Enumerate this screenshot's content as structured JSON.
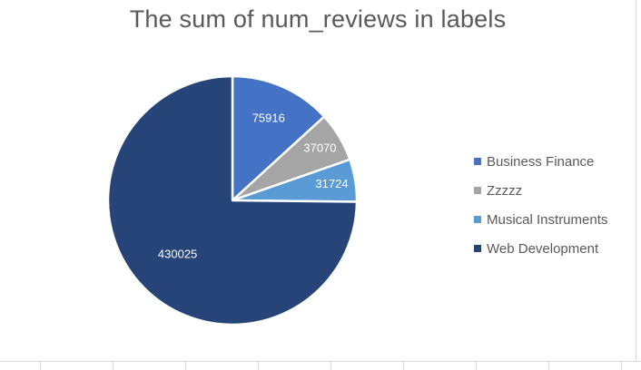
{
  "chart_data": {
    "type": "pie",
    "title": "The sum of num_reviews in labels",
    "categories": [
      "Business Finance",
      "Zzzzz",
      "Musical Instruments",
      "Web Development"
    ],
    "values": [
      75916,
      37070,
      31724,
      430025
    ],
    "colors": [
      "#4472c4",
      "#a5a5a5",
      "#5b9bd5",
      "#264478"
    ],
    "legend_position": "right",
    "start_angle_deg": 0,
    "direction": "clockwise"
  }
}
